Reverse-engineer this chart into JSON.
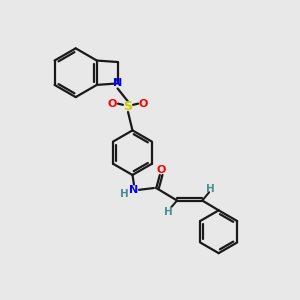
{
  "bg_color": "#e8e8e8",
  "bond_color": "#1a1a1a",
  "N_color": "#0000ff",
  "O_color": "#ff0000",
  "S_color": "#cccc00",
  "H_color": "#4a9090",
  "font_size": 8.0,
  "lw": 1.6,
  "xlim": [
    0,
    10
  ],
  "ylim": [
    0,
    10
  ]
}
